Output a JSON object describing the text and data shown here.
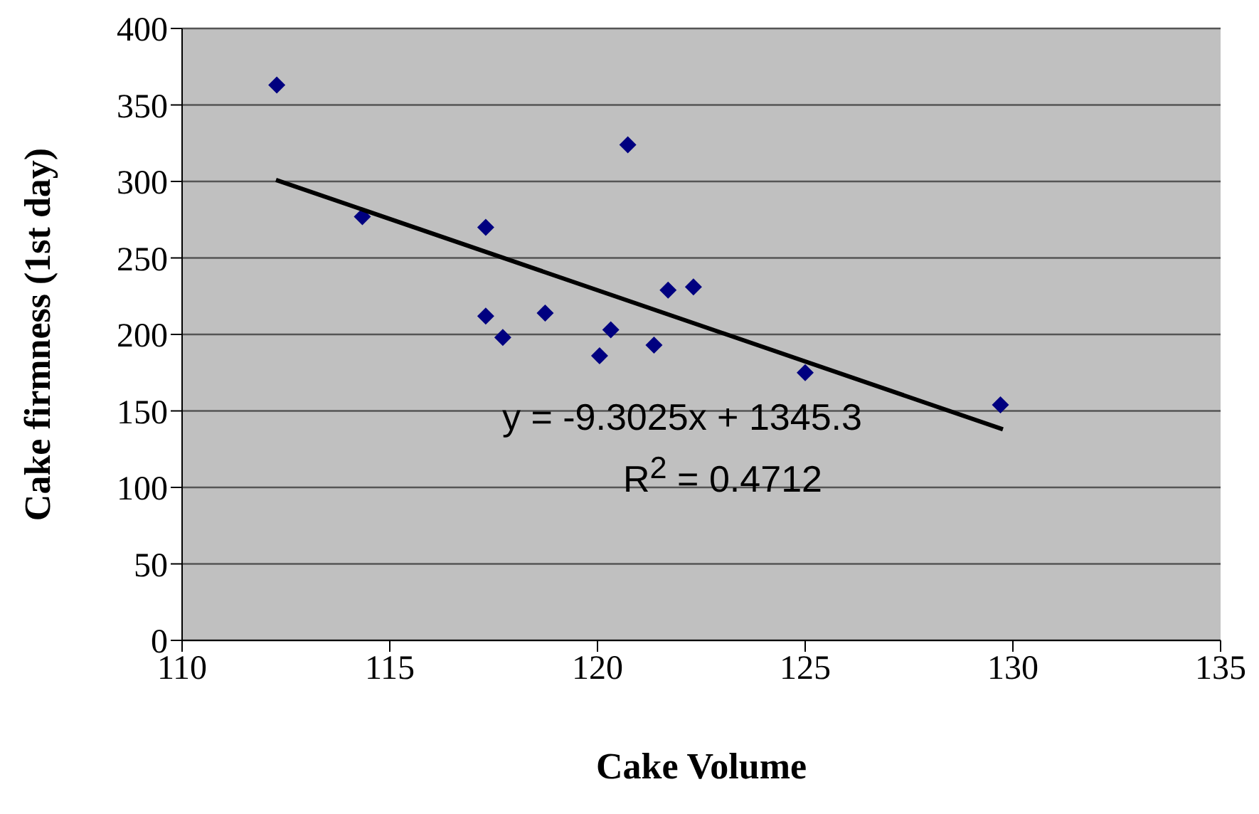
{
  "chart_data": {
    "type": "scatter",
    "xlabel": "Cake Volume",
    "ylabel": "Cake firmness (1st day)",
    "xlim": [
      110,
      135
    ],
    "xticks": [
      110,
      115,
      120,
      125,
      130,
      135
    ],
    "ylim": [
      0,
      400
    ],
    "yticks": [
      0,
      50,
      100,
      150,
      200,
      250,
      300,
      350,
      400
    ],
    "grid": "y",
    "series": [
      {
        "color": "#000080",
        "marker": "diamond",
        "x": [
          112.28,
          114.34,
          117.31,
          117.31,
          117.72,
          118.74,
          120.05,
          120.32,
          120.73,
          121.36,
          121.7,
          122.31,
          125.0,
          129.7
        ],
        "values": [
          363,
          277,
          270,
          212,
          198,
          214,
          186,
          203,
          324,
          193,
          229,
          231,
          175,
          154
        ]
      },
      {
        "type": "line",
        "color": "#000000",
        "marker": "none",
        "x": [
          112.26,
          129.76
        ],
        "values": [
          301,
          138
        ]
      }
    ],
    "annotations": [
      "y = -9.3025x + 1345.3",
      "R$^{2}$ = 0.4712"
    ]
  }
}
